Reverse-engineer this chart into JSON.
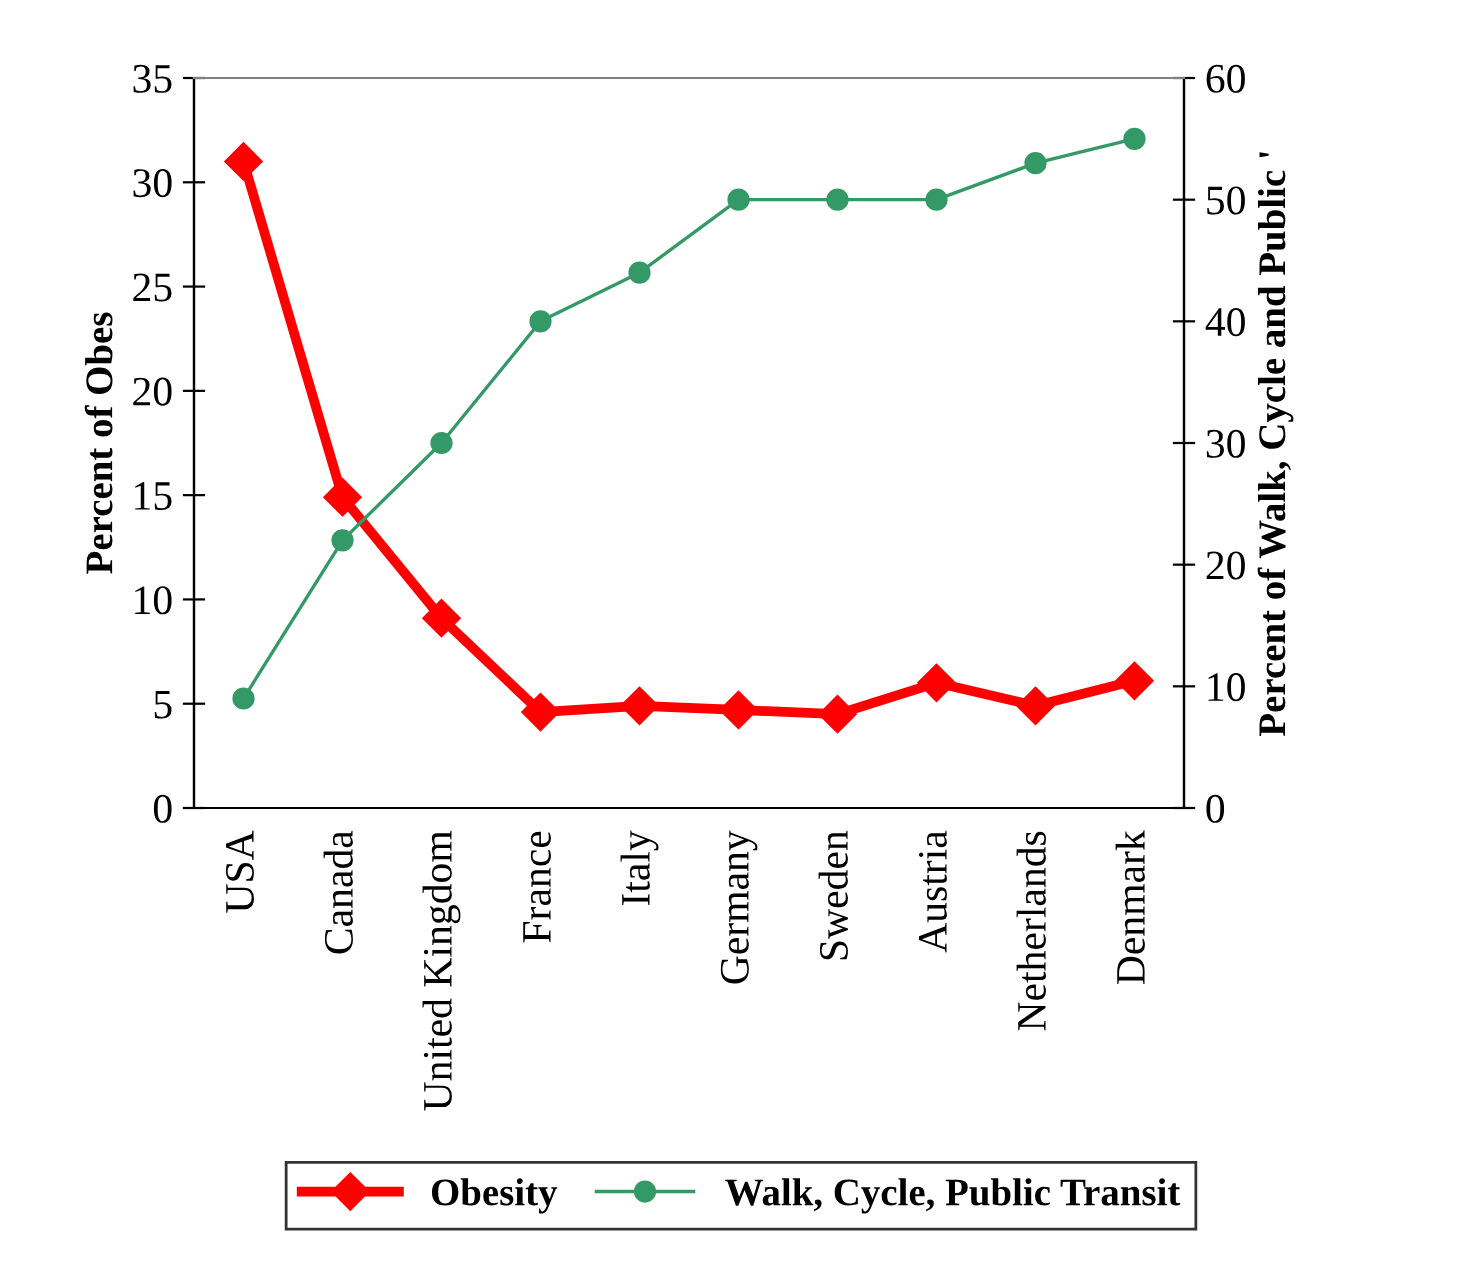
{
  "chart_data": {
    "type": "line",
    "categories": [
      "USA",
      "Canada",
      "United Kingdom",
      "France",
      "Italy",
      "Germany",
      "Sweden",
      "Austria",
      "Netherlands",
      "Denmark"
    ],
    "ylabel": "Percent of Obes",
    "y2label": "Percent of Walk, Cycle and Public '",
    "ylim": [
      0,
      35
    ],
    "yticks": [
      0,
      5,
      10,
      15,
      20,
      25,
      30,
      35
    ],
    "y2lim": [
      0,
      60
    ],
    "y2ticks": [
      0,
      10,
      20,
      30,
      40,
      50,
      60
    ],
    "grid": false,
    "legend": "bottom",
    "series": [
      {
        "name": "Obesity",
        "color": "#ff0000",
        "marker": "diamond",
        "values": [
          31,
          14.9,
          9.1,
          4.6,
          4.9,
          4.7,
          4.5,
          6.0,
          4.9,
          6.1
        ]
      },
      {
        "name": "Walk, Cycle, Public Transit",
        "color": "#339966",
        "marker": "circle",
        "axis": "y2",
        "values": [
          9,
          22,
          30,
          40,
          44,
          50,
          50,
          50,
          53,
          55
        ]
      }
    ]
  }
}
